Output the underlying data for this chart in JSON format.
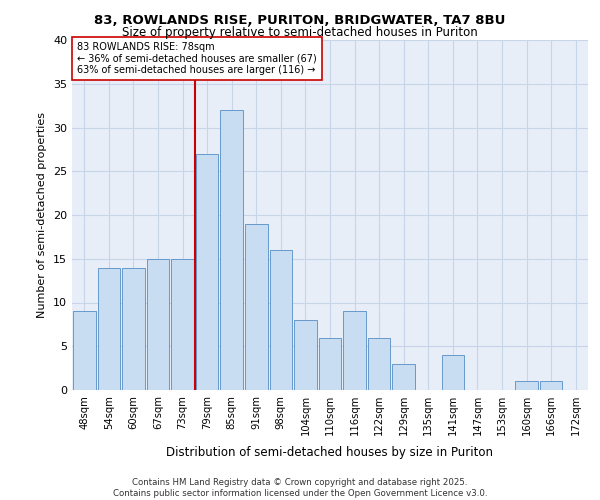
{
  "title1": "83, ROWLANDS RISE, PURITON, BRIDGWATER, TA7 8BU",
  "title2": "Size of property relative to semi-detached houses in Puriton",
  "xlabel": "Distribution of semi-detached houses by size in Puriton",
  "ylabel": "Number of semi-detached properties",
  "bins": [
    "48sqm",
    "54sqm",
    "60sqm",
    "67sqm",
    "73sqm",
    "79sqm",
    "85sqm",
    "91sqm",
    "98sqm",
    "104sqm",
    "110sqm",
    "116sqm",
    "122sqm",
    "129sqm",
    "135sqm",
    "141sqm",
    "147sqm",
    "153sqm",
    "160sqm",
    "166sqm",
    "172sqm"
  ],
  "values": [
    9,
    14,
    14,
    15,
    15,
    27,
    32,
    19,
    16,
    8,
    6,
    9,
    6,
    3,
    0,
    4,
    0,
    0,
    1,
    1,
    0
  ],
  "bar_color": "#c9ddf2",
  "bar_edge_color": "#6699cc",
  "property_line_index": 5,
  "annotation_text": "83 ROWLANDS RISE: 78sqm\n← 36% of semi-detached houses are smaller (67)\n63% of semi-detached houses are larger (116) →",
  "annotation_box_color": "#ffffff",
  "annotation_box_edge_color": "#cc0000",
  "red_line_color": "#cc0000",
  "footer_text": "Contains HM Land Registry data © Crown copyright and database right 2025.\nContains public sector information licensed under the Open Government Licence v3.0.",
  "ylim": [
    0,
    40
  ],
  "yticks": [
    0,
    5,
    10,
    15,
    20,
    25,
    30,
    35,
    40
  ],
  "grid_color": "#c8d4e8",
  "background_color": "#e8eef8"
}
